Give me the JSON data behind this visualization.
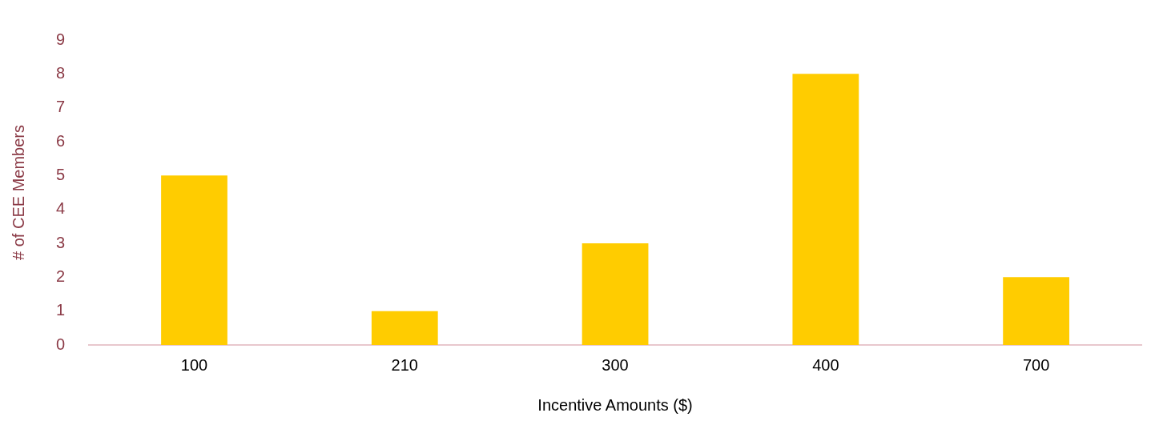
{
  "chart_data": {
    "type": "bar",
    "xlabel": "Incentive Amounts ($)",
    "ylabel": "# of CEE Members",
    "categories": [
      "100",
      "210",
      "300",
      "400",
      "700"
    ],
    "values": [
      5,
      1,
      3,
      8,
      2
    ],
    "color": "#ffcc00",
    "ylim": [
      0,
      9
    ],
    "yticks": [
      0,
      1,
      2,
      3,
      4,
      5,
      6,
      7,
      8,
      9
    ],
    "grid": false,
    "legend": false
  }
}
